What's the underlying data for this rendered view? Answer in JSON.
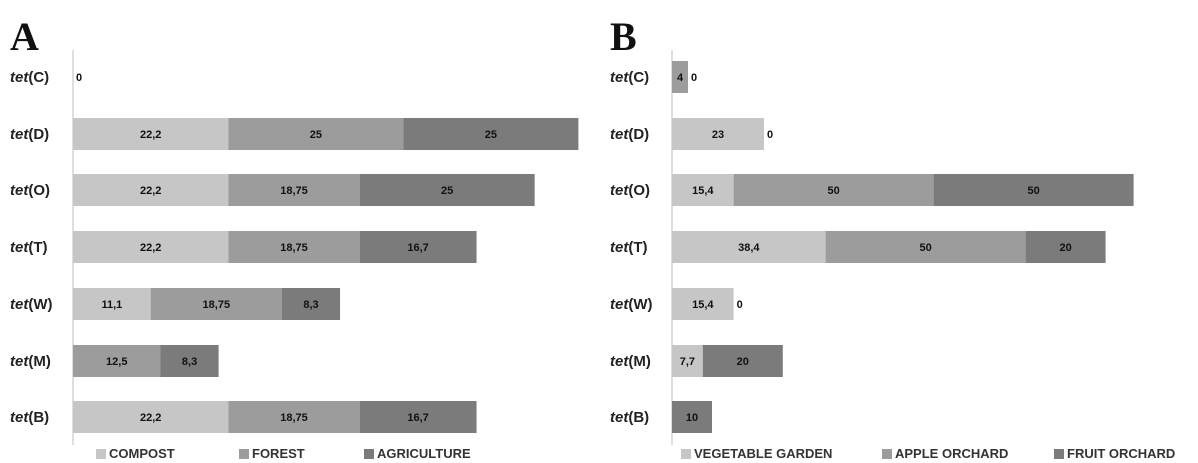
{
  "chart_data": [
    {
      "type": "bar",
      "orientation": "horizontal",
      "stacked": true,
      "panel": "A",
      "categories": [
        "tet(C)",
        "tet(D)",
        "tet(O)",
        "tet(T)",
        "tet(W)",
        "tet(M)",
        "tet(B)"
      ],
      "series": [
        {
          "name": "COMPOST",
          "values": [
            0,
            22.2,
            22.2,
            22.2,
            11.1,
            0,
            22.2
          ],
          "labels": [
            "0",
            "22,2",
            "22,2",
            "22,2",
            "11,1",
            "0",
            "22,2"
          ],
          "color": "#c6c6c6"
        },
        {
          "name": "FOREST",
          "values": [
            0,
            25,
            18.75,
            18.75,
            18.75,
            12.5,
            18.75
          ],
          "labels": [
            "",
            "25",
            "18,75",
            "18,75",
            "18,75",
            "12,5",
            "18,75"
          ],
          "color": "#9c9c9c"
        },
        {
          "name": "AGRICULTURE",
          "values": [
            0,
            25,
            25,
            16.7,
            8.3,
            8.3,
            16.7
          ],
          "labels": [
            "",
            "25",
            "25",
            "16,7",
            "8,3",
            "8,3",
            "16,7"
          ],
          "color": "#7b7b7b"
        }
      ],
      "legend_position": "bottom",
      "grid": false
    },
    {
      "type": "bar",
      "orientation": "horizontal",
      "stacked": true,
      "panel": "B",
      "categories": [
        "tet(C)",
        "tet(D)",
        "tet(O)",
        "tet(T)",
        "tet(W)",
        "tet(M)",
        "tet(B)"
      ],
      "series": [
        {
          "name": "VEGETABLE GARDEN",
          "values": [
            0,
            23,
            15.4,
            38.4,
            15.4,
            7.7,
            0
          ],
          "labels": [
            "",
            "23",
            "15,4",
            "38,4",
            "15,4",
            "7,7",
            "0"
          ],
          "color": "#c6c6c6"
        },
        {
          "name": "APPLE ORCHARD",
          "values": [
            4,
            0,
            50,
            50,
            0,
            0,
            0
          ],
          "labels": [
            "4",
            "0",
            "50",
            "50",
            "0",
            "0",
            ""
          ],
          "color": "#9c9c9c"
        },
        {
          "name": "FRUIT ORCHARD",
          "values": [
            0,
            0,
            50,
            20,
            0,
            20,
            10
          ],
          "labels": [
            "0",
            "",
            "50",
            "20",
            "",
            "20",
            "10"
          ],
          "color": "#7b7b7b"
        }
      ],
      "legend_position": "bottom",
      "grid": false
    }
  ]
}
